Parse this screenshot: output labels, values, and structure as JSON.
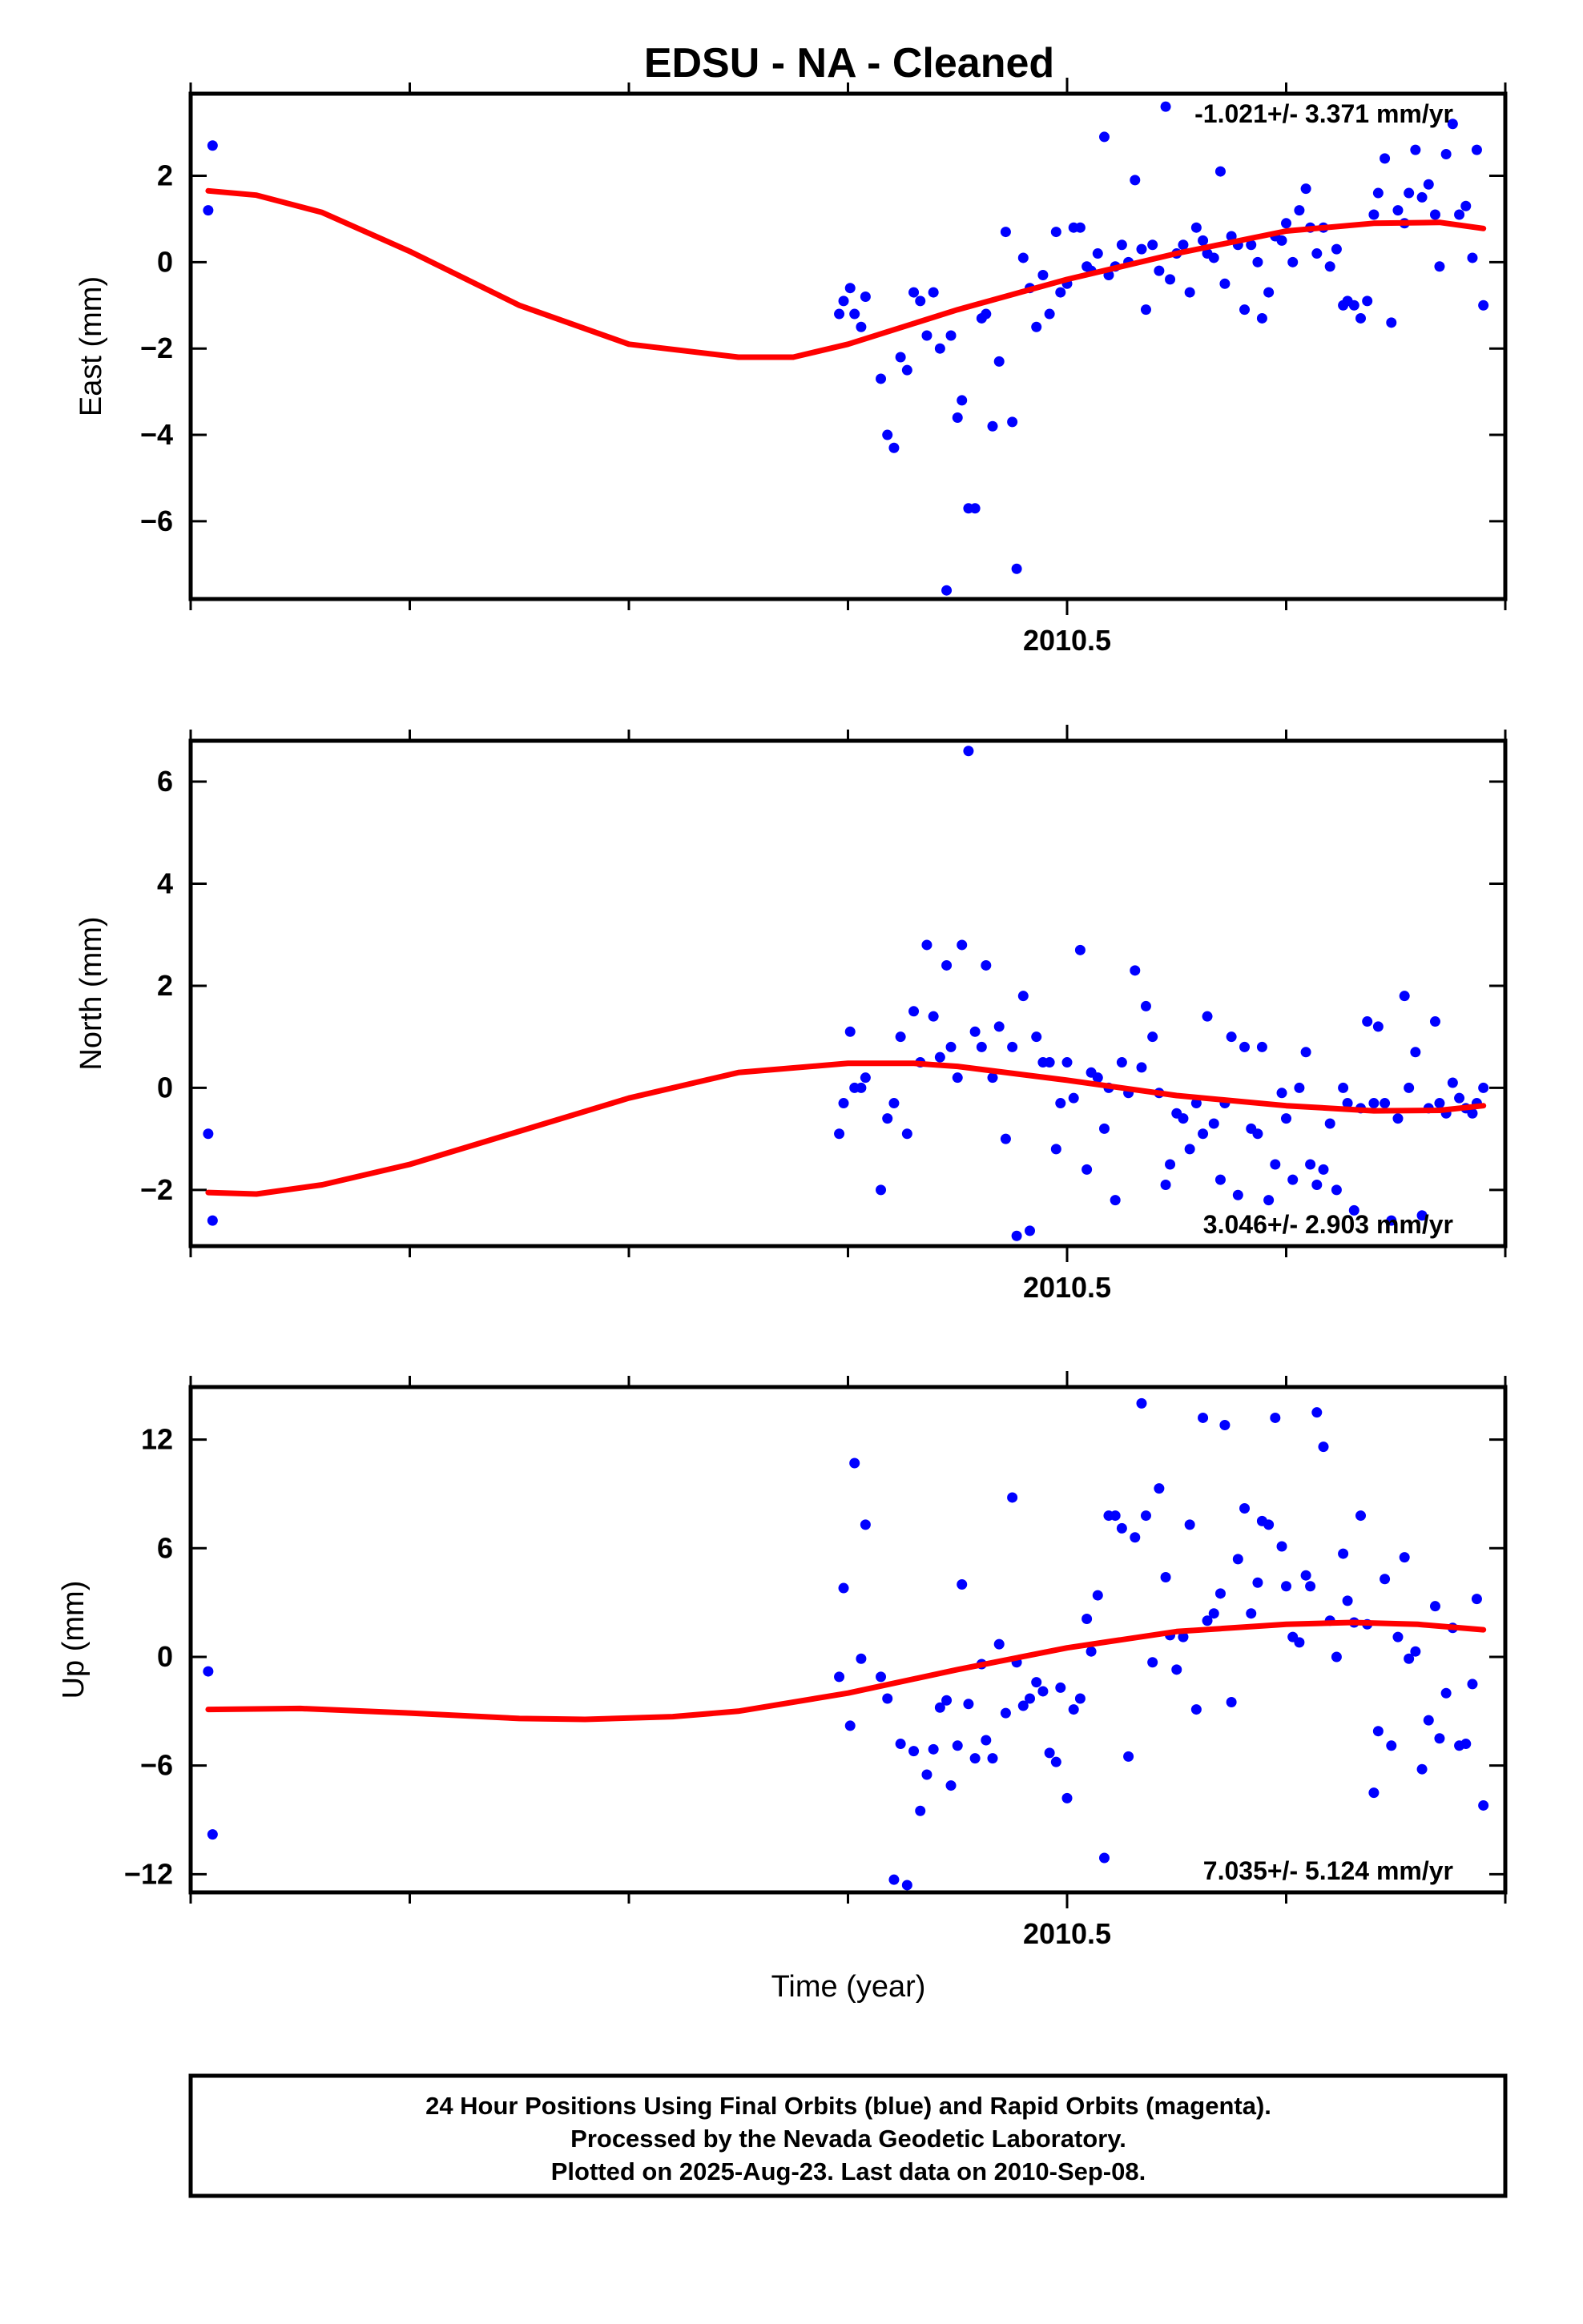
{
  "title": "EDSU  - NA - Cleaned",
  "colors": {
    "final_orbits": "#0000ff",
    "model_fit": "#ff0000",
    "frame": "#000000"
  },
  "footer": {
    "line1": "24 Hour Positions Using Final Orbits (blue) and Rapid Orbits (magenta).",
    "line2": "Processed by the Nevada Geodetic Laboratory.",
    "line3": "Plotted on 2025-Aug-23. Last data on 2010-Sep-08."
  },
  "chart_data": [
    {
      "type": "scatter",
      "ylabel": "East (mm)",
      "xlabel": "",
      "xlim": [
        2010.1,
        2010.7
      ],
      "ylim": [
        -7.8,
        3.9
      ],
      "x_ticks": [
        2010.5
      ],
      "x_tick_labels": [
        "2010.5"
      ],
      "y_ticks": [
        2,
        0,
        -2,
        -4,
        -6
      ],
      "y_tick_labels": [
        "2",
        "0",
        "−2",
        "−4",
        "−6"
      ],
      "rate_label": "-1.021+/- 3.371 mm/yr",
      "rate_label_position": "top-right",
      "series": [
        {
          "style": "points",
          "x": [
            2010.108,
            2010.11,
            2010.396,
            2010.398,
            2010.401,
            2010.403,
            2010.406,
            2010.408,
            2010.415,
            2010.418,
            2010.421,
            2010.424,
            2010.427,
            2010.43,
            2010.433,
            2010.436,
            2010.439,
            2010.442,
            2010.445,
            2010.447,
            2010.45,
            2010.452,
            2010.455,
            2010.458,
            2010.461,
            2010.463,
            2010.466,
            2010.469,
            2010.472,
            2010.475,
            2010.477,
            2010.48,
            2010.483,
            2010.486,
            2010.489,
            2010.492,
            2010.495,
            2010.497,
            2010.5,
            2010.503,
            2010.506,
            2010.509,
            2010.511,
            2010.514,
            2010.517,
            2010.519,
            2010.522,
            2010.525,
            2010.528,
            2010.531,
            2010.534,
            2010.536,
            2010.539,
            2010.542,
            2010.545,
            2010.547,
            2010.55,
            2010.553,
            2010.556,
            2010.559,
            2010.562,
            2010.564,
            2010.567,
            2010.57,
            2010.572,
            2010.575,
            2010.578,
            2010.581,
            2010.584,
            2010.587,
            2010.589,
            2010.592,
            2010.595,
            2010.598,
            2010.6,
            2010.603,
            2010.606,
            2010.609,
            2010.611,
            2010.614,
            2010.617,
            2010.62,
            2010.623,
            2010.626,
            2010.628,
            2010.631,
            2010.634,
            2010.637,
            2010.64,
            2010.642,
            2010.645,
            2010.648,
            2010.651,
            2010.654,
            2010.656,
            2010.659,
            2010.662,
            2010.665,
            2010.668,
            2010.67,
            2010.673,
            2010.676,
            2010.679,
            2010.682,
            2010.685,
            2010.687,
            2010.69
          ],
          "y": [
            1.2,
            2.7,
            -1.2,
            -0.9,
            -0.6,
            -1.2,
            -1.5,
            -0.8,
            -2.7,
            -4.0,
            -4.3,
            -2.2,
            -2.5,
            -0.7,
            -0.9,
            -1.7,
            -0.7,
            -2.0,
            -7.6,
            -1.7,
            -3.6,
            -3.2,
            -5.7,
            -5.7,
            -1.3,
            -1.2,
            -3.8,
            -2.3,
            0.7,
            -3.7,
            -7.1,
            0.1,
            -0.6,
            -1.5,
            -0.3,
            -1.2,
            0.7,
            -0.7,
            -0.5,
            0.8,
            0.8,
            -0.1,
            -0.2,
            0.2,
            2.9,
            -0.3,
            -0.1,
            0.4,
            0.0,
            1.9,
            0.3,
            -1.1,
            0.4,
            -0.2,
            3.6,
            -0.4,
            0.2,
            0.4,
            -0.7,
            0.8,
            0.5,
            0.2,
            0.1,
            2.1,
            -0.5,
            0.6,
            0.4,
            -1.1,
            0.4,
            0.0,
            -1.3,
            -0.7,
            0.6,
            0.5,
            0.9,
            0.0,
            1.2,
            1.7,
            0.8,
            0.2,
            0.8,
            -0.1,
            0.3,
            -1.0,
            -0.9,
            -1.0,
            -1.3,
            -0.9,
            1.1,
            1.6,
            2.4,
            -1.4,
            1.2,
            0.9,
            1.6,
            2.6,
            1.5,
            1.8,
            1.1,
            -0.1,
            2.5,
            3.2,
            1.1,
            1.3,
            0.1,
            2.6,
            -1.0
          ]
        },
        {
          "style": "curve",
          "x": [
            2010.108,
            2010.13,
            2010.16,
            2010.2,
            2010.25,
            2010.3,
            2010.35,
            2010.375,
            2010.4,
            2010.45,
            2010.5,
            2010.55,
            2010.6,
            2010.64,
            2010.67,
            2010.69
          ],
          "y": [
            1.65,
            1.55,
            1.15,
            0.25,
            -1.0,
            -1.9,
            -2.2,
            -2.2,
            -1.9,
            -1.1,
            -0.4,
            0.2,
            0.72,
            0.9,
            0.92,
            0.78
          ]
        }
      ]
    },
    {
      "type": "scatter",
      "ylabel": "North (mm)",
      "xlabel": "",
      "xlim": [
        2010.1,
        2010.7
      ],
      "ylim": [
        -3.1,
        6.8
      ],
      "x_ticks": [
        2010.5
      ],
      "x_tick_labels": [
        "2010.5"
      ],
      "y_ticks": [
        6,
        4,
        2,
        0,
        -2
      ],
      "y_tick_labels": [
        "6",
        "4",
        "2",
        "0",
        "−2"
      ],
      "rate_label": "3.046+/- 2.903 mm/yr",
      "rate_label_position": "bottom-right",
      "series": [
        {
          "style": "points",
          "x": [
            2010.108,
            2010.11,
            2010.396,
            2010.398,
            2010.401,
            2010.403,
            2010.406,
            2010.408,
            2010.415,
            2010.418,
            2010.421,
            2010.424,
            2010.427,
            2010.43,
            2010.433,
            2010.436,
            2010.439,
            2010.442,
            2010.445,
            2010.447,
            2010.45,
            2010.452,
            2010.455,
            2010.458,
            2010.461,
            2010.463,
            2010.466,
            2010.469,
            2010.472,
            2010.475,
            2010.477,
            2010.48,
            2010.483,
            2010.486,
            2010.489,
            2010.492,
            2010.495,
            2010.497,
            2010.5,
            2010.503,
            2010.506,
            2010.509,
            2010.511,
            2010.514,
            2010.517,
            2010.519,
            2010.522,
            2010.525,
            2010.528,
            2010.531,
            2010.534,
            2010.536,
            2010.539,
            2010.542,
            2010.545,
            2010.547,
            2010.55,
            2010.553,
            2010.556,
            2010.559,
            2010.562,
            2010.564,
            2010.567,
            2010.57,
            2010.572,
            2010.575,
            2010.578,
            2010.581,
            2010.584,
            2010.587,
            2010.589,
            2010.592,
            2010.595,
            2010.598,
            2010.6,
            2010.603,
            2010.606,
            2010.609,
            2010.611,
            2010.614,
            2010.617,
            2010.62,
            2010.623,
            2010.626,
            2010.628,
            2010.631,
            2010.634,
            2010.637,
            2010.64,
            2010.642,
            2010.645,
            2010.648,
            2010.651,
            2010.654,
            2010.656,
            2010.659,
            2010.662,
            2010.665,
            2010.668,
            2010.67,
            2010.673,
            2010.676,
            2010.679,
            2010.682,
            2010.685,
            2010.687,
            2010.69
          ],
          "y": [
            -0.9,
            -2.6,
            -0.9,
            -0.3,
            1.1,
            0.0,
            0.0,
            0.2,
            -2.0,
            -0.6,
            -0.3,
            1.0,
            -0.9,
            1.5,
            0.5,
            2.8,
            1.4,
            0.6,
            2.4,
            0.8,
            0.2,
            2.8,
            6.6,
            1.1,
            0.8,
            2.4,
            0.2,
            1.2,
            -1.0,
            0.8,
            -2.9,
            1.8,
            -2.8,
            1.0,
            0.5,
            0.5,
            -1.2,
            -0.3,
            0.5,
            -0.2,
            2.7,
            -1.6,
            0.3,
            0.2,
            -0.8,
            0.0,
            -2.2,
            0.5,
            -0.1,
            2.3,
            0.4,
            1.6,
            1.0,
            -0.1,
            -1.9,
            -1.5,
            -0.5,
            -0.6,
            -1.2,
            -0.3,
            -0.9,
            1.4,
            -0.7,
            -1.8,
            -0.3,
            1.0,
            -2.1,
            0.8,
            -0.8,
            -0.9,
            0.8,
            -2.2,
            -1.5,
            -0.1,
            -0.6,
            -1.8,
            0.0,
            0.7,
            -1.5,
            -1.9,
            -1.6,
            -0.7,
            -2.0,
            0.0,
            -0.3,
            -2.4,
            -0.4,
            1.3,
            -0.3,
            1.2,
            -0.3,
            -2.6,
            -0.6,
            1.8,
            0.0,
            0.7,
            -2.5,
            -0.4,
            1.3,
            -0.3,
            -0.5,
            0.1,
            -0.2,
            -0.4,
            -0.5,
            -0.3,
            0.0
          ]
        },
        {
          "style": "curve",
          "x": [
            2010.108,
            2010.13,
            2010.16,
            2010.2,
            2010.25,
            2010.3,
            2010.35,
            2010.4,
            2010.43,
            2010.45,
            2010.5,
            2010.55,
            2010.6,
            2010.64,
            2010.67,
            2010.69
          ],
          "y": [
            -2.05,
            -2.08,
            -1.9,
            -1.5,
            -0.85,
            -0.2,
            0.3,
            0.48,
            0.48,
            0.42,
            0.15,
            -0.15,
            -0.35,
            -0.45,
            -0.44,
            -0.35
          ]
        }
      ]
    },
    {
      "type": "scatter",
      "ylabel": "Up (mm)",
      "xlabel": "Time (year)",
      "xlim": [
        2010.1,
        2010.7
      ],
      "ylim": [
        -13.0,
        14.9
      ],
      "x_ticks": [
        2010.5
      ],
      "x_tick_labels": [
        "2010.5"
      ],
      "y_ticks": [
        12,
        6,
        0,
        -6,
        -12
      ],
      "y_tick_labels": [
        "12",
        "6",
        "0",
        "−6",
        "−12"
      ],
      "rate_label": "7.035+/- 5.124 mm/yr",
      "rate_label_position": "bottom-right",
      "series": [
        {
          "style": "points",
          "x": [
            2010.108,
            2010.11,
            2010.396,
            2010.398,
            2010.401,
            2010.403,
            2010.406,
            2010.408,
            2010.415,
            2010.418,
            2010.421,
            2010.424,
            2010.427,
            2010.43,
            2010.433,
            2010.436,
            2010.439,
            2010.442,
            2010.445,
            2010.447,
            2010.45,
            2010.452,
            2010.455,
            2010.458,
            2010.461,
            2010.463,
            2010.466,
            2010.469,
            2010.472,
            2010.475,
            2010.477,
            2010.48,
            2010.483,
            2010.486,
            2010.489,
            2010.492,
            2010.495,
            2010.497,
            2010.5,
            2010.503,
            2010.506,
            2010.509,
            2010.511,
            2010.514,
            2010.517,
            2010.519,
            2010.522,
            2010.525,
            2010.528,
            2010.531,
            2010.534,
            2010.536,
            2010.539,
            2010.542,
            2010.545,
            2010.547,
            2010.55,
            2010.553,
            2010.556,
            2010.559,
            2010.562,
            2010.564,
            2010.567,
            2010.57,
            2010.572,
            2010.575,
            2010.578,
            2010.581,
            2010.584,
            2010.587,
            2010.589,
            2010.592,
            2010.595,
            2010.598,
            2010.6,
            2010.603,
            2010.606,
            2010.609,
            2010.611,
            2010.614,
            2010.617,
            2010.62,
            2010.623,
            2010.626,
            2010.628,
            2010.631,
            2010.634,
            2010.637,
            2010.64,
            2010.642,
            2010.645,
            2010.648,
            2010.651,
            2010.654,
            2010.656,
            2010.659,
            2010.662,
            2010.665,
            2010.668,
            2010.67,
            2010.673,
            2010.676,
            2010.679,
            2010.682,
            2010.685,
            2010.687,
            2010.69
          ],
          "y": [
            -0.8,
            -9.8,
            -1.1,
            3.8,
            -3.8,
            10.7,
            -0.1,
            7.3,
            -1.1,
            -2.3,
            -12.3,
            -4.8,
            -12.6,
            -5.2,
            -8.5,
            -6.5,
            -5.1,
            -2.8,
            -2.4,
            -7.1,
            -4.9,
            4.0,
            -2.6,
            -5.6,
            -0.4,
            -4.6,
            -5.6,
            0.7,
            -3.1,
            8.8,
            -0.3,
            -2.7,
            -2.3,
            -1.4,
            -1.9,
            -5.3,
            -5.8,
            -1.7,
            -7.8,
            -2.9,
            -2.3,
            2.1,
            0.3,
            3.4,
            -11.1,
            7.8,
            7.8,
            7.1,
            -5.5,
            6.6,
            14.0,
            7.8,
            -0.3,
            9.3,
            4.4,
            1.2,
            -0.7,
            1.1,
            7.3,
            -2.9,
            13.2,
            2.0,
            2.4,
            3.5,
            12.8,
            -2.5,
            5.4,
            8.2,
            2.4,
            4.1,
            7.5,
            7.3,
            13.2,
            6.1,
            3.9,
            1.1,
            0.8,
            4.5,
            3.9,
            13.5,
            11.6,
            2.0,
            0.0,
            5.7,
            3.1,
            1.9,
            7.8,
            1.8,
            -7.5,
            -4.1,
            4.3,
            -4.9,
            1.1,
            5.5,
            -0.1,
            0.3,
            -6.2,
            -3.5,
            2.8,
            -4.5,
            -2.0,
            1.6,
            -4.9,
            -4.8,
            -1.5,
            3.2,
            -8.2
          ]
        },
        {
          "style": "curve",
          "x": [
            2010.108,
            2010.15,
            2010.2,
            2010.25,
            2010.28,
            2010.32,
            2010.35,
            2010.4,
            2010.45,
            2010.5,
            2010.55,
            2010.6,
            2010.63,
            2010.66,
            2010.69
          ],
          "y": [
            -2.9,
            -2.85,
            -3.1,
            -3.4,
            -3.45,
            -3.3,
            -3.0,
            -2.0,
            -0.7,
            0.5,
            1.4,
            1.8,
            1.9,
            1.8,
            1.5
          ]
        }
      ]
    }
  ]
}
